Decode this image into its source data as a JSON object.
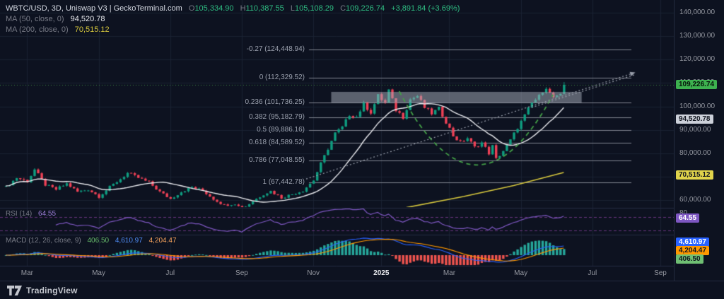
{
  "header": {
    "symbol_line": "WBTC/USD, 3D, Uniswap V3 | GeckoTerminal.com",
    "ohlc": {
      "o_label": "O",
      "o": "105,334.90",
      "h_label": "H",
      "h": "110,387.55",
      "l_label": "L",
      "l": "105,108.29",
      "c_label": "C",
      "c": "109,226.74",
      "change": "+3,891.84 (+3.69%)"
    },
    "ma50": {
      "label": "MA (50, close, 0)",
      "value": "94,520.78"
    },
    "ma200": {
      "label": "MA (200, close, 0)",
      "value": "70,515.12"
    }
  },
  "fib_levels": [
    {
      "label": "-0.27 (124,448.94)",
      "price": 124448.94
    },
    {
      "label": "0 (112,329.52)",
      "price": 112329.52
    },
    {
      "label": "0.236 (101,736.25)",
      "price": 101736.25
    },
    {
      "label": "0.382 (95,182.79)",
      "price": 95182.79
    },
    {
      "label": "0.5 (89,886.16)",
      "price": 89886.16
    },
    {
      "label": "0.618 (84,589.52)",
      "price": 84589.52
    },
    {
      "label": "0.786 (77,048.55)",
      "price": 77048.55
    },
    {
      "label": "1 (67,442.78)",
      "price": 67442.78
    }
  ],
  "rsi": {
    "legend": "RSI (14)",
    "value": "64.55",
    "upper_scale_tick": "80"
  },
  "macd": {
    "legend": "MACD (12, 26, close, 9)",
    "hist_value": "406.50",
    "macd_value": "4,610.97",
    "signal_value": "4,204.47"
  },
  "badges": {
    "last_price": "109,226.74",
    "ma50": "94,520.78",
    "ma200": "70,515.12",
    "rsi": "64.55",
    "macd": "4,610.97",
    "signal": "4,204.47",
    "hist": "406.50"
  },
  "footer": {
    "brand": "TradingView"
  },
  "colors": {
    "bg": "#0d1220",
    "grid": "#1a2132",
    "separator": "#232b40",
    "text": "#9598a1",
    "text_bright": "#e9eaee",
    "up": "#0f9d80",
    "down": "#ef4156",
    "ma50_line": "#e9eaee",
    "ma200_line": "#d7c83d",
    "fib": "#80848f",
    "cup": "#43a047",
    "zone": "#aab0bc",
    "trend": "#9aa0ac",
    "last_line": "#4caf50",
    "rsi": "#7e57c2",
    "rsi_level": "#b24fc8",
    "macd_line": "#2962ff",
    "signal_line": "#ff9800",
    "hist_pos": "#26a69a",
    "hist_neg": "#f0544f",
    "last_badge": "#3db14f",
    "ma50_badge": "#ccd0d9",
    "ma200_badge": "#e0d34b",
    "rsi_badge": "#7e57c2",
    "macd_badge": "#2962ff",
    "signal_badge": "#ff9800",
    "hist_badge": "#6fbf73"
  },
  "chart_data": {
    "type": "candlestick",
    "title": "WBTC/USD 3D on Uniswap V3 (GeckoTerminal.com) with MA50, MA200, Fibonacci retracement, RSI(14), MACD(12,26,9)",
    "interval": "3D",
    "ylim": [
      57900,
      145400
    ],
    "ohlc_last": {
      "open": 105334.9,
      "high": 110387.55,
      "low": 105108.29,
      "close": 109226.74,
      "change": 3891.84,
      "change_pct": 3.69
    },
    "markers": {
      "last_price": 109226.74,
      "ma50": 94520.78,
      "ma200": 70515.12,
      "rsi": 64.55,
      "macd": 4610.97,
      "signal": 4204.47,
      "hist": 406.5
    },
    "candles_count": 157,
    "close_anchors": [
      [
        0,
        65500
      ],
      [
        3,
        69500
      ],
      [
        6,
        68000
      ],
      [
        8,
        73000
      ],
      [
        11,
        66500
      ],
      [
        14,
        64500
      ],
      [
        17,
        67000
      ],
      [
        20,
        63500
      ],
      [
        23,
        64500
      ],
      [
        26,
        61500
      ],
      [
        29,
        65500
      ],
      [
        32,
        69000
      ],
      [
        34,
        71500
      ],
      [
        37,
        69500
      ],
      [
        40,
        67500
      ],
      [
        43,
        63500
      ],
      [
        46,
        60500
      ],
      [
        49,
        63500
      ],
      [
        52,
        65500
      ],
      [
        55,
        64000
      ],
      [
        58,
        60500
      ],
      [
        61,
        57800
      ],
      [
        64,
        58500
      ],
      [
        66,
        56200
      ],
      [
        69,
        59500
      ],
      [
        72,
        62500
      ],
      [
        74,
        63800
      ],
      [
        77,
        61000
      ],
      [
        80,
        62500
      ],
      [
        83,
        64000
      ],
      [
        86,
        68500
      ],
      [
        88,
        75500
      ],
      [
        90,
        82000
      ],
      [
        92,
        88500
      ],
      [
        94,
        91000
      ],
      [
        96,
        96500
      ],
      [
        98,
        95500
      ],
      [
        100,
        101000
      ],
      [
        102,
        97500
      ],
      [
        104,
        104500
      ],
      [
        106,
        101500
      ],
      [
        107,
        106800
      ],
      [
        109,
        98500
      ],
      [
        111,
        95500
      ],
      [
        113,
        103000
      ],
      [
        115,
        104500
      ],
      [
        117,
        99500
      ],
      [
        119,
        97000
      ],
      [
        121,
        99000
      ],
      [
        123,
        93500
      ],
      [
        125,
        87500
      ],
      [
        127,
        84500
      ],
      [
        129,
        86500
      ],
      [
        131,
        82500
      ],
      [
        133,
        84500
      ],
      [
        135,
        80000
      ],
      [
        136,
        83000
      ],
      [
        137,
        77500
      ],
      [
        139,
        81000
      ],
      [
        141,
        85500
      ],
      [
        143,
        91000
      ],
      [
        145,
        96000
      ],
      [
        147,
        101500
      ],
      [
        149,
        104200
      ],
      [
        150,
        106800
      ],
      [
        151,
        108300
      ],
      [
        152,
        105500
      ],
      [
        153,
        104000
      ],
      [
        155,
        105334.9
      ],
      [
        156,
        109226.74
      ]
    ],
    "ma50_window": 17,
    "ma200_points": [
      [
        112,
        56800
      ],
      [
        128,
        61500
      ],
      [
        142,
        66200
      ],
      [
        156,
        71800
      ]
    ],
    "trendlines": [
      {
        "i1": 84,
        "p1": 69000,
        "i2": 176,
        "p2": 114500
      },
      {
        "i1": 147,
        "p1": 99500,
        "i2": 176,
        "p2": 113600
      }
    ],
    "cup": {
      "i1": 110,
      "p1": 106500,
      "i2": 153,
      "p2": 105000,
      "p_mid": 75000
    },
    "zone_box": {
      "i1": 91,
      "i2": 161,
      "p_top": 106200,
      "p_bottom": 101500
    },
    "rsi_levels": [
      70,
      30
    ],
    "y_ticks": [
      {
        "label": "140,000.00",
        "value": 140000
      },
      {
        "label": "130,000.00",
        "value": 130000
      },
      {
        "label": "120,000.00",
        "value": 120000
      },
      {
        "label": "110,000.00",
        "value": 110000
      },
      {
        "label": "100,000.00",
        "value": 100000
      },
      {
        "label": "90,000.00",
        "value": 90000
      },
      {
        "label": "80,000.00",
        "value": 80000
      },
      {
        "label": "70,000.00",
        "value": 70000
      },
      {
        "label": "60,000.00",
        "value": 60000
      }
    ],
    "x_ticks": [
      {
        "label": "Mar",
        "i": 6
      },
      {
        "label": "May",
        "i": 26
      },
      {
        "label": "Jul",
        "i": 46
      },
      {
        "label": "Sep",
        "i": 66
      },
      {
        "label": "Nov",
        "i": 86
      },
      {
        "label": "2025",
        "i": 105
      },
      {
        "label": "Mar",
        "i": 124
      },
      {
        "label": "May",
        "i": 144
      },
      {
        "label": "Jul",
        "i": 164
      },
      {
        "label": "Sep",
        "i": 183
      }
    ]
  }
}
